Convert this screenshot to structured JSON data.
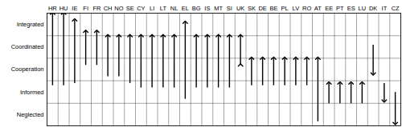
{
  "chart_data": {
    "type": "arrow",
    "ylim": [
      0,
      5
    ],
    "yticks": [
      {
        "value": 0.5,
        "label": "Neglected"
      },
      {
        "value": 1.5,
        "label": "Informed"
      },
      {
        "value": 2.5,
        "label": "Cooperation"
      },
      {
        "value": 3.5,
        "label": "Coordinated"
      },
      {
        "value": 4.5,
        "label": "Integrated"
      }
    ],
    "grid": true,
    "color": "#000000",
    "arrows": [
      {
        "category": "HR",
        "from": 1.8,
        "to": 5.0,
        "marker": "arrow"
      },
      {
        "category": "HU",
        "from": 1.8,
        "to": 5.0,
        "marker": "arrow"
      },
      {
        "category": "IE",
        "from": 1.9,
        "to": 4.7,
        "marker": "arrow"
      },
      {
        "category": "FI",
        "from": 2.7,
        "to": 4.2,
        "marker": "arrow"
      },
      {
        "category": "FR",
        "from": 2.7,
        "to": 4.2,
        "marker": "arrow"
      },
      {
        "category": "CH",
        "from": 2.2,
        "to": 4.0,
        "marker": "arrow"
      },
      {
        "category": "NO",
        "from": 2.2,
        "to": 4.0,
        "marker": "arrow"
      },
      {
        "category": "SE",
        "from": 1.9,
        "to": 4.0,
        "marker": "arrow"
      },
      {
        "category": "CY",
        "from": 1.7,
        "to": 4.0,
        "marker": "arrow"
      },
      {
        "category": "LI",
        "from": 1.7,
        "to": 4.0,
        "marker": "arrow"
      },
      {
        "category": "LT",
        "from": 1.7,
        "to": 4.0,
        "marker": "arrow"
      },
      {
        "category": "NL",
        "from": 1.7,
        "to": 4.0,
        "marker": "arrow"
      },
      {
        "category": "EL",
        "from": 1.2,
        "to": 4.6,
        "marker": "arrow"
      },
      {
        "category": "BG",
        "from": 1.7,
        "to": 4.0,
        "marker": "arrow"
      },
      {
        "category": "IS",
        "from": 1.7,
        "to": 4.0,
        "marker": "arrow"
      },
      {
        "category": "MT",
        "from": 1.7,
        "to": 4.0,
        "marker": "arrow"
      },
      {
        "category": "SI",
        "from": 1.7,
        "to": 4.0,
        "marker": "arrow"
      },
      {
        "category": "UK",
        "from": 2.7,
        "to": 4.0,
        "marker": "double_arrow"
      },
      {
        "category": "SK",
        "from": 1.8,
        "to": 3.0,
        "marker": "arrow"
      },
      {
        "category": "DE",
        "from": 1.8,
        "to": 3.0,
        "marker": "arrow"
      },
      {
        "category": "BE",
        "from": 1.8,
        "to": 3.0,
        "marker": "arrow"
      },
      {
        "category": "PL",
        "from": 1.8,
        "to": 3.0,
        "marker": "arrow"
      },
      {
        "category": "LV",
        "from": 1.8,
        "to": 3.0,
        "marker": "arrow"
      },
      {
        "category": "RO",
        "from": 1.8,
        "to": 3.0,
        "marker": "arrow"
      },
      {
        "category": "AT",
        "from": 0.2,
        "to": 3.0,
        "marker": "arrow"
      },
      {
        "category": "EE",
        "from": 1.0,
        "to": 1.9,
        "marker": "arrow"
      },
      {
        "category": "PT",
        "from": 1.0,
        "to": 1.9,
        "marker": "arrow"
      },
      {
        "category": "ES",
        "from": 1.0,
        "to": 1.9,
        "marker": "arrow"
      },
      {
        "category": "LU",
        "from": 1.0,
        "to": 1.9,
        "marker": "arrow"
      },
      {
        "category": "DK",
        "from": 3.6,
        "to": 2.3,
        "marker": "arrow"
      },
      {
        "category": "IT",
        "from": 1.9,
        "to": 1.1,
        "marker": "arrow"
      },
      {
        "category": "CZ",
        "from": 1.5,
        "to": 0.1,
        "marker": "arrow"
      }
    ]
  }
}
